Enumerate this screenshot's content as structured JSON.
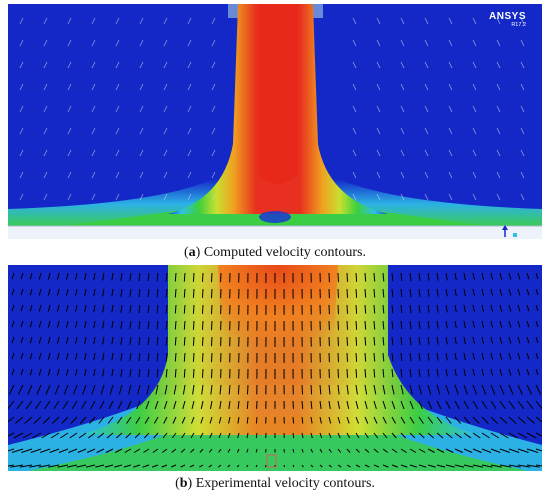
{
  "panel_a": {
    "logo_name": "ANSYS",
    "logo_version": "R17.2",
    "caption_letter": "a",
    "caption_text": " Computed velocity contours."
  },
  "panel_b": {
    "caption_letter": "b",
    "caption_text": " Experimental velocity contours."
  },
  "colors": {
    "low": "#1428c8",
    "cyan": "#2fc0e8",
    "green": "#3ccf3c",
    "yellow": "#f0e020",
    "orange": "#f08020",
    "red": "#e82818"
  }
}
